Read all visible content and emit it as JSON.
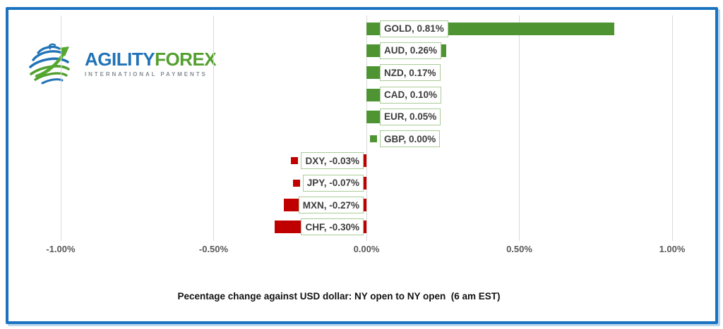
{
  "logo": {
    "brand_primary": "AGILITY",
    "brand_secondary": "FOREX",
    "tagline": "INTERNATIONAL PAYMENTS"
  },
  "frame": {
    "border_color": "#1a73c0"
  },
  "chart_data": {
    "type": "bar",
    "orientation": "horizontal",
    "title": "Pecentage change against USD dollar: NY open to NY open  (6 am EST)",
    "categories": [
      "GOLD",
      "AUD",
      "NZD",
      "CAD",
      "EUR",
      "GBP",
      "DXY",
      "JPY",
      "MXN",
      "CHF"
    ],
    "values": [
      0.81,
      0.26,
      0.17,
      0.1,
      0.05,
      0.0,
      -0.03,
      -0.07,
      -0.27,
      -0.3
    ],
    "labels": [
      "GOLD, 0.81%",
      "AUD, 0.26%",
      "NZD, 0.17%",
      "CAD, 0.10%",
      "EUR, 0.05%",
      "GBP, 0.00%",
      "DXY, -0.03%",
      "JPY, -0.07%",
      "MXN, -0.27%",
      "CHF, -0.30%"
    ],
    "x_ticks": [
      "-1.00%",
      "-0.50%",
      "0.00%",
      "0.50%",
      "1.00%"
    ],
    "x_tick_values": [
      -1.0,
      -0.5,
      0.0,
      0.5,
      1.0
    ],
    "xlim": [
      -1.0,
      1.0
    ],
    "grid": true,
    "legend_position": "none",
    "positive_color": "#4f9433",
    "negative_color": "#c00000",
    "label_border_color": "#aacb96",
    "gridline_color": "#d9d9d9",
    "axis_text_color": "#595959"
  }
}
